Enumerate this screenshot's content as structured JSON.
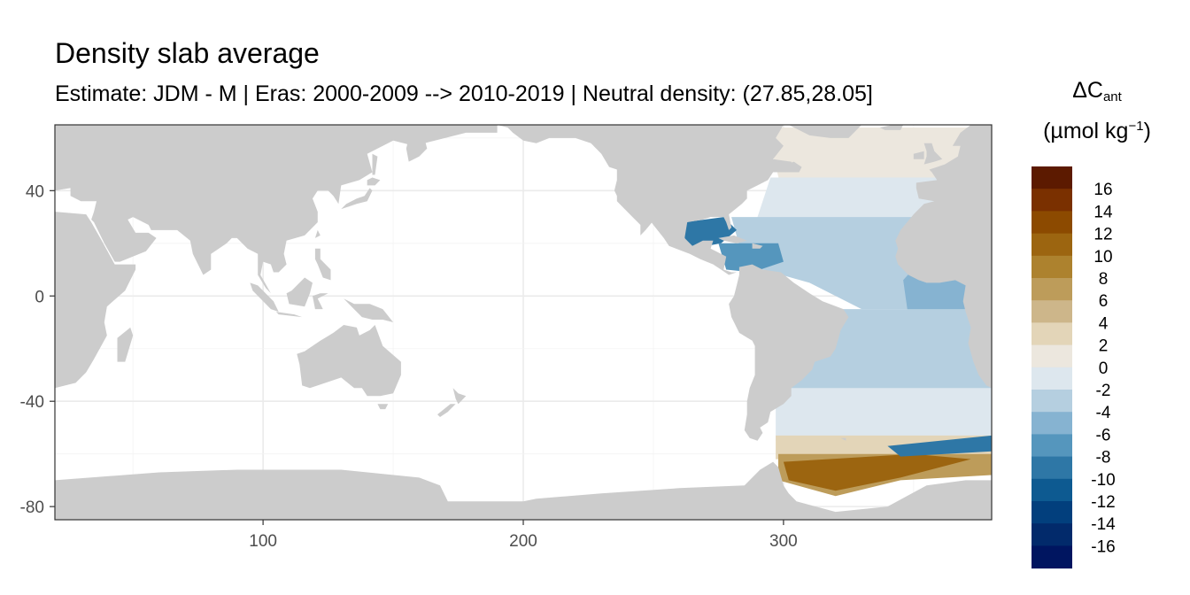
{
  "chart_data": {
    "type": "heatmap",
    "title": "Density slab average",
    "subtitle": "Estimate: JDM - M | Eras: 2000-2009 --> 2010-2019 | Neutral density: (27.85,28.05]",
    "legend": {
      "title_line1_main": "ΔC",
      "title_line1_sub": "ant",
      "title_line2_main": "(µmol kg",
      "title_line2_sup": "−1",
      "title_line2_end": ")",
      "placement": "right",
      "levels": [
        {
          "label": "16",
          "color": "#5c1a00"
        },
        {
          "label": "14",
          "color": "#7a3000"
        },
        {
          "label": "12",
          "color": "#8c4a00"
        },
        {
          "label": "10",
          "color": "#9c6510"
        },
        {
          "label": "8",
          "color": "#ad822e"
        },
        {
          "label": "6",
          "color": "#bd9c5a"
        },
        {
          "label": "4",
          "color": "#cdb68a"
        },
        {
          "label": "2",
          "color": "#e3d5b8"
        },
        {
          "label": "0",
          "color": "#ece7de"
        },
        {
          "label": "-2",
          "color": "#dde7ee"
        },
        {
          "label": "-4",
          "color": "#b5cfe0"
        },
        {
          "label": "-6",
          "color": "#86b3d1"
        },
        {
          "label": "-8",
          "color": "#5596bd"
        },
        {
          "label": "-10",
          "color": "#2e77a6"
        },
        {
          "label": "-12",
          "color": "#0d5a91"
        },
        {
          "label": "-14",
          "color": "#023f7d"
        },
        {
          "label": "-16",
          "color": "#022a6b"
        },
        {
          "label": "",
          "color": "#001560"
        }
      ]
    },
    "xlim": [
      20,
      380
    ],
    "ylim": [
      -85,
      65
    ],
    "x_ticks": [
      100,
      200,
      300
    ],
    "x_tick_labels": [
      "100",
      "200",
      "300"
    ],
    "y_ticks": [
      40,
      0,
      -40,
      -80
    ],
    "y_tick_labels": [
      "40",
      "0",
      "-40",
      "-80"
    ],
    "grid": true,
    "land_color": "#cccccc",
    "ocean_no_data_color": "#ffffff",
    "regions": [
      {
        "name": "north-atlantic-high-latitude",
        "level": "0"
      },
      {
        "name": "north-atlantic-subpolar",
        "level": "-2"
      },
      {
        "name": "north-atlantic-subtropical",
        "level": "-4"
      },
      {
        "name": "eastern-tropical-atlantic",
        "level": "-6"
      },
      {
        "name": "gulf-of-mexico",
        "level": "-10"
      },
      {
        "name": "caribbean-sea",
        "level": "-8"
      },
      {
        "name": "south-atlantic",
        "level": "-4"
      },
      {
        "name": "south-atlantic-southern-band",
        "level": "-2"
      },
      {
        "name": "weddell-transition",
        "level": "2"
      },
      {
        "name": "weddell-sea",
        "level": "6"
      },
      {
        "name": "weddell-sea-core",
        "level": "10"
      },
      {
        "name": "scotia-ridge-band",
        "level": "-10"
      }
    ]
  }
}
